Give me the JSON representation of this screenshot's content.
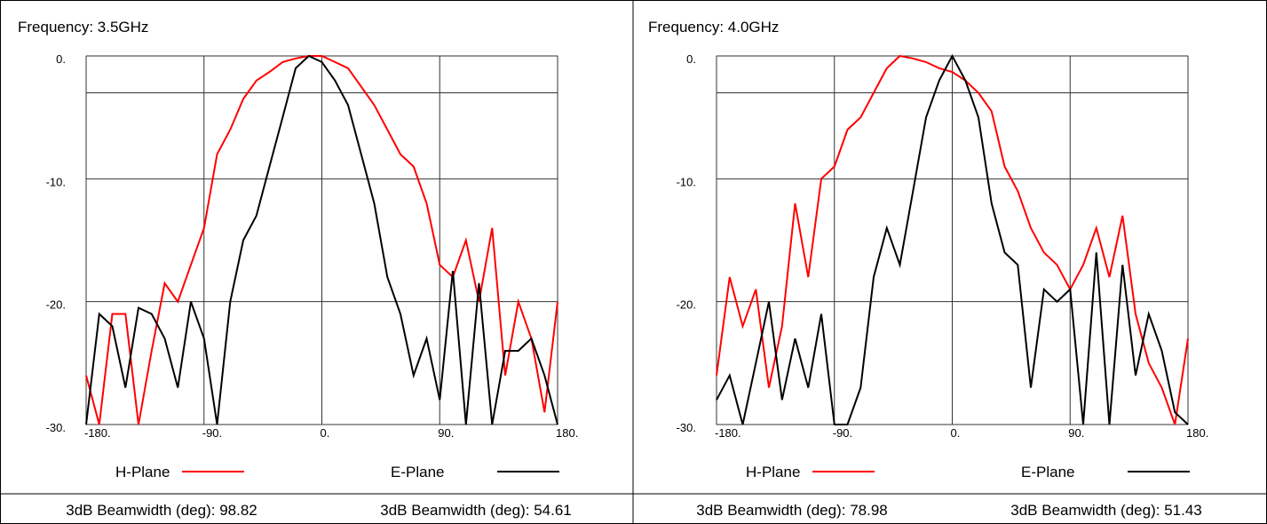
{
  "chart_data": [
    {
      "type": "line",
      "title": "Frequency: 3.5GHz",
      "x": [
        -180,
        -170,
        -160,
        -150,
        -140,
        -130,
        -120,
        -110,
        -100,
        -90,
        -80,
        -70,
        -60,
        -50,
        -40,
        -30,
        -20,
        -10,
        0,
        10,
        20,
        30,
        40,
        50,
        60,
        70,
        80,
        90,
        100,
        110,
        120,
        130,
        140,
        150,
        160,
        170,
        180
      ],
      "series": [
        {
          "name": "H-Plane",
          "color": "#ff0000",
          "values": [
            -26,
            -30,
            -21,
            -21,
            -30,
            -24,
            -18.5,
            -20,
            -17,
            -14,
            -8,
            -6,
            -3.5,
            -2,
            -1.3,
            -0.5,
            -0.2,
            0,
            0,
            -0.5,
            -1,
            -2.5,
            -4,
            -6,
            -8,
            -9,
            -12,
            -17,
            -18,
            -15,
            -20,
            -14,
            -26,
            -20,
            -23,
            -29,
            -20
          ]
        },
        {
          "name": "E-Plane",
          "color": "#000000",
          "values": [
            -30,
            -21,
            -22,
            -27,
            -20.5,
            -21,
            -23,
            -27,
            -20,
            -23,
            -30,
            -20,
            -15,
            -13,
            -9,
            -5,
            -1,
            0,
            -0.5,
            -2,
            -4,
            -8,
            -12,
            -18,
            -21,
            -26,
            -23,
            -28,
            -17.5,
            -30,
            -18.5,
            -30,
            -24,
            -24,
            -23,
            -26,
            -30
          ]
        }
      ],
      "xlim": [
        -180,
        180
      ],
      "ylim": [
        -30,
        0
      ],
      "xticks": [
        {
          "value": -180,
          "label": "-180."
        },
        {
          "value": -90,
          "label": "-90."
        },
        {
          "value": 0,
          "label": "0."
        },
        {
          "value": 90,
          "label": "90."
        },
        {
          "value": 180,
          "label": "180."
        }
      ],
      "yticks": [
        {
          "value": 0,
          "label": "0."
        },
        {
          "value": -10,
          "label": "-10."
        },
        {
          "value": -20,
          "label": "-20."
        },
        {
          "value": -30,
          "label": "-30."
        }
      ],
      "reference_line": -3,
      "grid": true,
      "annotations": [
        "3dB Beamwidth (deg): 98.82",
        "3dB Beamwidth (deg): 54.61"
      ]
    },
    {
      "type": "line",
      "title": "Frequency: 4.0GHz",
      "x": [
        -180,
        -170,
        -160,
        -150,
        -140,
        -130,
        -120,
        -110,
        -100,
        -90,
        -80,
        -70,
        -60,
        -50,
        -40,
        -30,
        -20,
        -10,
        0,
        10,
        20,
        30,
        40,
        50,
        60,
        70,
        80,
        90,
        100,
        110,
        120,
        130,
        140,
        150,
        160,
        170,
        180
      ],
      "series": [
        {
          "name": "H-Plane",
          "color": "#ff0000",
          "values": [
            -26,
            -18,
            -22,
            -19,
            -27,
            -22,
            -12,
            -18,
            -10,
            -9,
            -6,
            -5,
            -3,
            -1,
            0,
            -0.2,
            -0.5,
            -1,
            -1.3,
            -2,
            -3,
            -4.5,
            -9,
            -11,
            -14,
            -16,
            -17,
            -19,
            -17,
            -14,
            -18,
            -13,
            -21,
            -25,
            -27,
            -30,
            -23
          ]
        },
        {
          "name": "E-Plane",
          "color": "#000000",
          "values": [
            -28,
            -26,
            -30,
            -25,
            -20,
            -28,
            -23,
            -27,
            -21,
            -30,
            -30,
            -27,
            -18,
            -14,
            -17,
            -11,
            -5,
            -2,
            0,
            -2,
            -5,
            -12,
            -16,
            -17,
            -27,
            -19,
            -20,
            -19,
            -30,
            -16,
            -30,
            -17,
            -26,
            -21,
            -24,
            -29,
            -30
          ]
        }
      ],
      "xlim": [
        -180,
        180
      ],
      "ylim": [
        -30,
        0
      ],
      "xticks": [
        {
          "value": -180,
          "label": "-180."
        },
        {
          "value": -90,
          "label": "-90."
        },
        {
          "value": 0,
          "label": "0."
        },
        {
          "value": 90,
          "label": "90."
        },
        {
          "value": 180,
          "label": "180."
        }
      ],
      "yticks": [
        {
          "value": 0,
          "label": "0."
        },
        {
          "value": -10,
          "label": "-10."
        },
        {
          "value": -20,
          "label": "-20."
        },
        {
          "value": -30,
          "label": "-30."
        }
      ],
      "reference_line": -3,
      "grid": true,
      "annotations": [
        "3dB Beamwidth (deg): 78.98",
        "3dB Beamwidth (deg): 51.43"
      ]
    }
  ]
}
